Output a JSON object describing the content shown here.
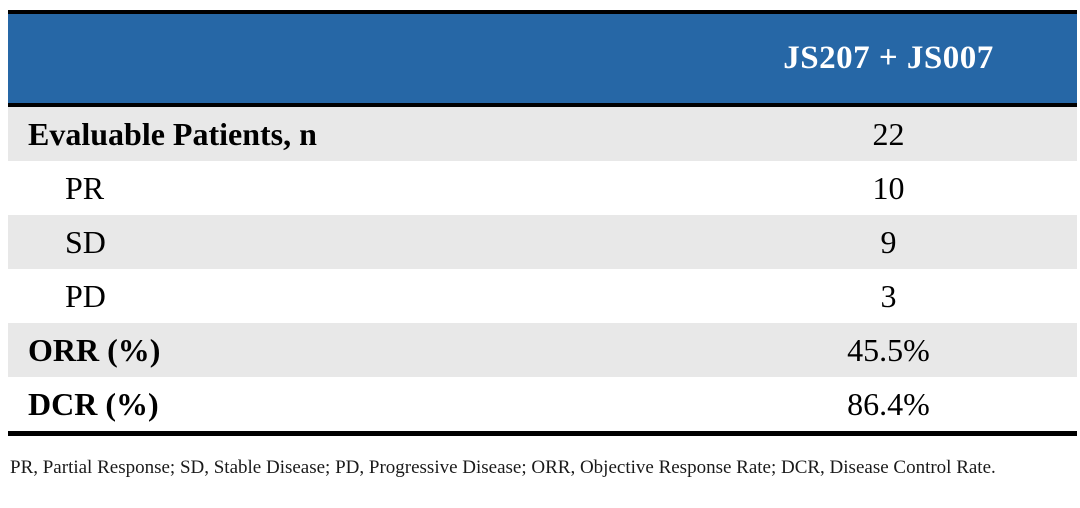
{
  "table": {
    "header": {
      "treatment_arm": "JS207 + JS007"
    },
    "rows": [
      {
        "label": "Evaluable Patients, n",
        "value": "22"
      },
      {
        "label": "PR",
        "value": "10"
      },
      {
        "label": "SD",
        "value": "9"
      },
      {
        "label": "PD",
        "value": "3"
      },
      {
        "label": "ORR (%)",
        "value": "45.5%"
      },
      {
        "label": "DCR (%)",
        "value": "86.4%"
      }
    ],
    "footnote": "PR, Partial Response; SD, Stable Disease; PD, Progressive Disease; ORR, Objective Response Rate; DCR, Disease Control Rate."
  },
  "colors": {
    "header_bg": "#2667A6",
    "header_text": "#FFFFFF",
    "stripe_bg": "#E8E8E8",
    "border": "#000000",
    "body_text": "#000000"
  }
}
